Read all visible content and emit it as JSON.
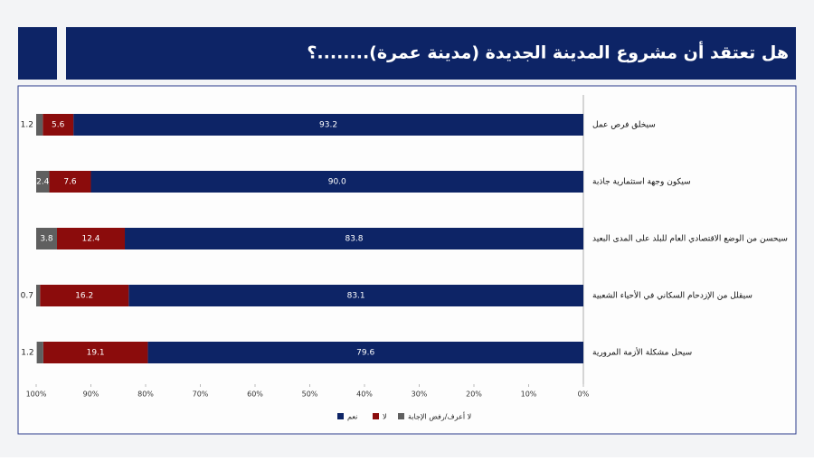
{
  "chart_data": {
    "type": "stacked-bar-horizontal",
    "title": "هل تعتقد أن مشروع المدينة الجديدة (مدينة عمرة)........؟",
    "categories": [
      "سيخلق فرص عمل",
      "سيكون وجهة استثمارية جاذبة",
      "سيحسن من الوضع الاقتصادي العام للبلد على المدى البعيد",
      "سيقلل من الإزدحام السكاني في الأحياء الشعبية",
      "سيحل مشكلة الأزمة المرورية"
    ],
    "series": [
      {
        "name": "نعم",
        "color": "#0d2466",
        "values": [
          93.2,
          90.0,
          83.8,
          83.1,
          79.6
        ],
        "value_labels": [
          "93.2",
          "90.0",
          "83.8",
          "83.1",
          "79.6"
        ]
      },
      {
        "name": "لا",
        "color": "#8b0c0c",
        "values": [
          5.6,
          7.6,
          12.4,
          16.2,
          19.1
        ]
      },
      {
        "name": "لا أعرف/رفض الإجابة",
        "color": "#5f5f5f",
        "values": [
          1.2,
          2.4,
          3.8,
          0.7,
          1.2
        ]
      }
    ],
    "xlim": [
      0,
      100
    ],
    "x_reversed": true,
    "xticks": [
      {
        "value": 0,
        "label": "0%"
      },
      {
        "value": 10,
        "label": "10%"
      },
      {
        "value": 20,
        "label": "20%"
      },
      {
        "value": 30,
        "label": "30%"
      },
      {
        "value": 40,
        "label": "40%"
      },
      {
        "value": 50,
        "label": "50%"
      },
      {
        "value": 60,
        "label": "60%"
      },
      {
        "value": 70,
        "label": "70%"
      },
      {
        "value": 80,
        "label": "80%"
      },
      {
        "value": 90,
        "label": "90%"
      },
      {
        "value": 100,
        "label": "100%"
      }
    ],
    "legend": "bottom"
  }
}
